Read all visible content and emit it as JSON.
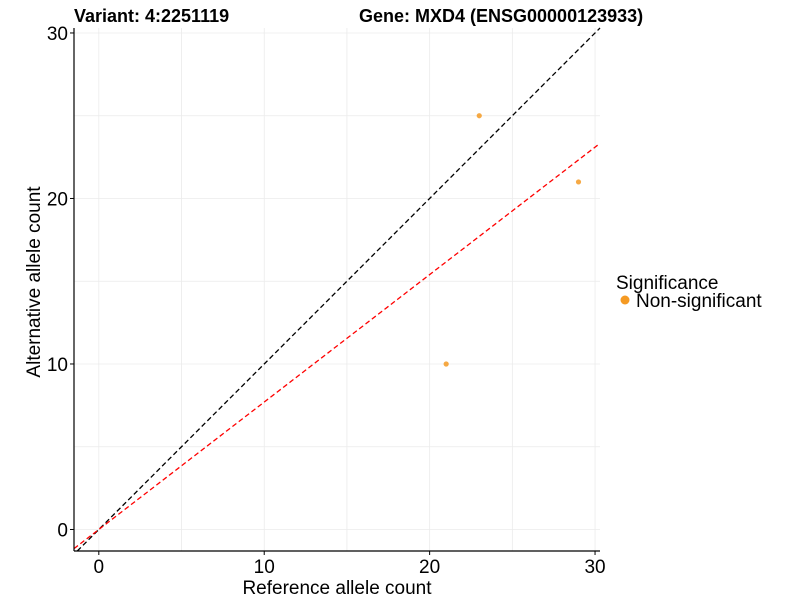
{
  "chart_data": {
    "type": "scatter",
    "title_left": "Variant: 4:2251119",
    "title_right": "Gene: MXD4 (ENSG00000123933)",
    "xlabel": "Reference allele count",
    "ylabel": "Alternative allele count",
    "xlim": [
      -1.5,
      30.3
    ],
    "ylim": [
      -1.3,
      30.3
    ],
    "x_ticks": [
      0,
      10,
      20,
      30
    ],
    "y_ticks": [
      0,
      10,
      20,
      30
    ],
    "grid": true,
    "legend": {
      "title": "Significance",
      "placement": "right",
      "entries": [
        {
          "label": "Non-significant",
          "color": "#F59A23"
        }
      ]
    },
    "series": [
      {
        "name": "Non-significant",
        "color": "#F59A23",
        "points": [
          {
            "x": 23,
            "y": 25
          },
          {
            "x": 29,
            "y": 21
          },
          {
            "x": 21,
            "y": 10
          }
        ]
      }
    ],
    "reference_lines": [
      {
        "color": "#000000",
        "style": "dashed",
        "slope": 1.0,
        "intercept": 0
      },
      {
        "color": "#FF0000",
        "style": "dashed",
        "slope": 0.77,
        "intercept": 0
      }
    ]
  }
}
